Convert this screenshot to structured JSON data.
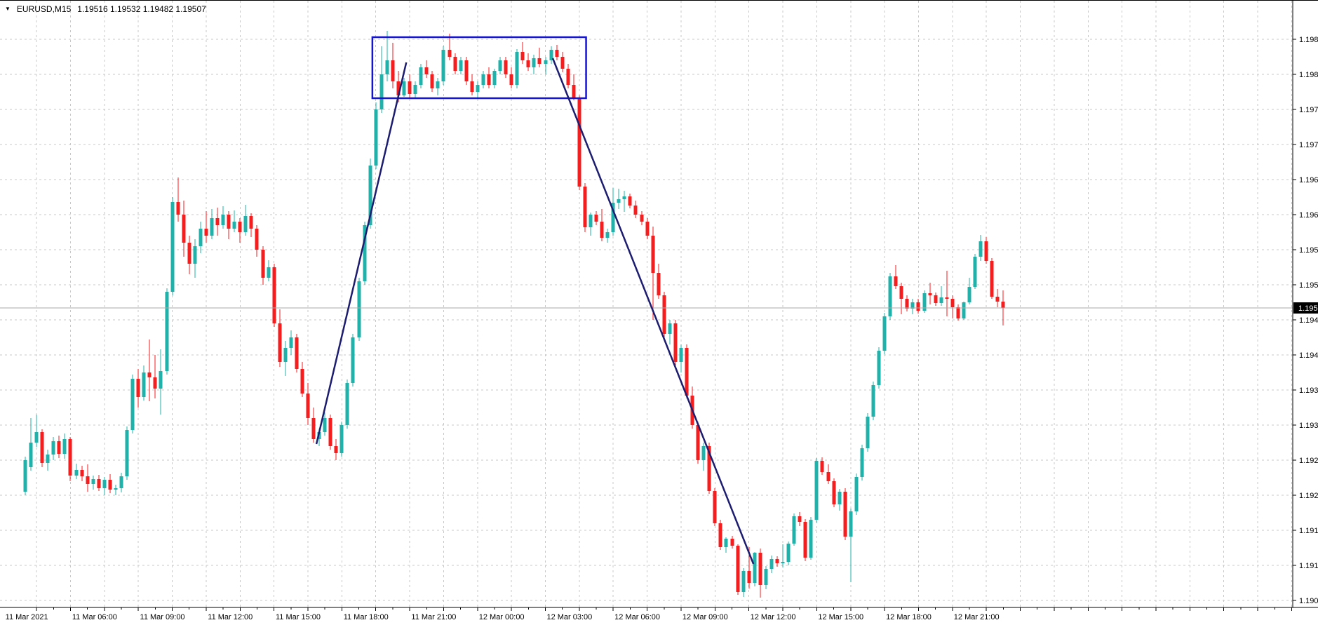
{
  "window": {
    "symbol_label": "EURUSD,M15",
    "ohlc_line": "1.19516 1.19532 1.19482 1.19507"
  },
  "chart_data": {
    "type": "candlestick",
    "title": "EURUSD,M15",
    "symbol": "EURUSD",
    "timeframe": "M15",
    "current_price": "1.19507",
    "colors": {
      "background": "#ffffff",
      "bull": "#20b2aa",
      "bear": "#f51d1d",
      "grid": "#c8c8c8",
      "axis_line": "#000000",
      "price_line": "#aaaaaa",
      "badge_bg": "#000000",
      "badge_text": "#ffffff",
      "rectangle": "#1515cd",
      "trendline": "#1c1c70"
    },
    "y_axis": {
      "max": 1.1989,
      "min": 1.1909,
      "step": 0.0005,
      "labels": [
        "1.19890",
        "1.19840",
        "1.19790",
        "1.19740",
        "1.19690",
        "1.19640",
        "1.19590",
        "1.19540",
        "1.19490",
        "1.19440",
        "1.19390",
        "1.19340",
        "1.19290",
        "1.19240",
        "1.19190",
        "1.19140",
        "1.19090"
      ]
    },
    "x_axis": {
      "labels": [
        {
          "i": 2,
          "t": "11 Mar 2021"
        },
        {
          "i": 14,
          "t": "11 Mar 06:00"
        },
        {
          "i": 26,
          "t": "11 Mar 09:00"
        },
        {
          "i": 38,
          "t": "11 Mar 12:00"
        },
        {
          "i": 50,
          "t": "11 Mar 15:00"
        },
        {
          "i": 62,
          "t": "11 Mar 18:00"
        },
        {
          "i": 74,
          "t": "11 Mar 21:00"
        },
        {
          "i": 86,
          "t": "12 Mar 00:00"
        },
        {
          "i": 98,
          "t": "12 Mar 03:00"
        },
        {
          "i": 110,
          "t": "12 Mar 06:00"
        },
        {
          "i": 122,
          "t": "12 Mar 09:00"
        },
        {
          "i": 134,
          "t": "12 Mar 12:00"
        },
        {
          "i": 146,
          "t": "12 Mar 15:00"
        },
        {
          "i": 158,
          "t": "12 Mar 18:00"
        },
        {
          "i": 170,
          "t": "12 Mar 21:00"
        }
      ]
    },
    "annotations": {
      "rectangle": {
        "i1": 61.4,
        "i2": 99.2,
        "p1": 1.19893,
        "p2": 1.19806
      },
      "trendlines": [
        {
          "i1": 51.5,
          "p1": 1.19313,
          "i2": 67.4,
          "p2": 1.19857
        },
        {
          "i1": 93.3,
          "p1": 1.19863,
          "i2": 128.8,
          "p2": 1.19142
        }
      ]
    },
    "candles": [
      [
        1.19245,
        1.19295,
        1.1924,
        1.1929
      ],
      [
        1.1928,
        1.1935,
        1.19275,
        1.19315
      ],
      [
        1.19315,
        1.19355,
        1.19309,
        1.1933
      ],
      [
        1.1933,
        1.19334,
        1.1928,
        1.19286
      ],
      [
        1.19286,
        1.19305,
        1.19275,
        1.19298
      ],
      [
        1.19298,
        1.19323,
        1.1929,
        1.19317
      ],
      [
        1.19317,
        1.19325,
        1.19293,
        1.19299
      ],
      [
        1.19299,
        1.19328,
        1.19292,
        1.1932
      ],
      [
        1.1932,
        1.19323,
        1.1926,
        1.19268
      ],
      [
        1.19268,
        1.19285,
        1.19263,
        1.19276
      ],
      [
        1.19276,
        1.19282,
        1.1926,
        1.19267
      ],
      [
        1.19267,
        1.19284,
        1.19245,
        1.19256
      ],
      [
        1.19256,
        1.19268,
        1.19248,
        1.19263
      ],
      [
        1.19263,
        1.19269,
        1.19246,
        1.1925
      ],
      [
        1.1925,
        1.19266,
        1.1924,
        1.19262
      ],
      [
        1.19262,
        1.1927,
        1.19243,
        1.19248
      ],
      [
        1.19248,
        1.19255,
        1.1924,
        1.1925
      ],
      [
        1.1925,
        1.19272,
        1.19244,
        1.19267
      ],
      [
        1.19267,
        1.19338,
        1.19262,
        1.19333
      ],
      [
        1.19333,
        1.19412,
        1.19328,
        1.19406
      ],
      [
        1.19406,
        1.1942,
        1.19365,
        1.1938
      ],
      [
        1.1938,
        1.19425,
        1.19375,
        1.19415
      ],
      [
        1.19415,
        1.19462,
        1.19374,
        1.19408
      ],
      [
        1.19408,
        1.1944,
        1.19378,
        1.19392
      ],
      [
        1.19392,
        1.19448,
        1.19355,
        1.19417
      ],
      [
        1.19417,
        1.19535,
        1.19412,
        1.1953
      ],
      [
        1.1953,
        1.19665,
        1.19525,
        1.19658
      ],
      [
        1.19658,
        1.19693,
        1.1963,
        1.1964
      ],
      [
        1.1964,
        1.1966,
        1.1958,
        1.196
      ],
      [
        1.196,
        1.1961,
        1.19555,
        1.1957
      ],
      [
        1.1957,
        1.19605,
        1.1955,
        1.19595
      ],
      [
        1.19595,
        1.1963,
        1.19585,
        1.1962
      ],
      [
        1.1962,
        1.19645,
        1.196,
        1.1961
      ],
      [
        1.1961,
        1.19648,
        1.19605,
        1.19635
      ],
      [
        1.19635,
        1.1965,
        1.1961,
        1.19625
      ],
      [
        1.19625,
        1.19652,
        1.1962,
        1.1964
      ],
      [
        1.1964,
        1.19645,
        1.19605,
        1.1962
      ],
      [
        1.1962,
        1.19646,
        1.19615,
        1.1963
      ],
      [
        1.1963,
        1.19635,
        1.196,
        1.19615
      ],
      [
        1.19615,
        1.19654,
        1.1961,
        1.19638
      ],
      [
        1.19638,
        1.19642,
        1.19608,
        1.1962
      ],
      [
        1.1962,
        1.19625,
        1.1958,
        1.1959
      ],
      [
        1.1959,
        1.19595,
        1.1954,
        1.1955
      ],
      [
        1.1955,
        1.19575,
        1.19545,
        1.19565
      ],
      [
        1.19565,
        1.1957,
        1.1948,
        1.19485
      ],
      [
        1.19485,
        1.19505,
        1.19423,
        1.1943
      ],
      [
        1.1943,
        1.1946,
        1.1941,
        1.1945
      ],
      [
        1.1945,
        1.19475,
        1.1944,
        1.19465
      ],
      [
        1.19465,
        1.1947,
        1.19415,
        1.1942
      ],
      [
        1.1942,
        1.1943,
        1.1938,
        1.19385
      ],
      [
        1.19385,
        1.194,
        1.1934,
        1.1935
      ],
      [
        1.1935,
        1.19365,
        1.19315,
        1.1932
      ],
      [
        1.1932,
        1.19335,
        1.1931,
        1.1933
      ],
      [
        1.1933,
        1.19358,
        1.19325,
        1.1935
      ],
      [
        1.1935,
        1.19355,
        1.19305,
        1.1931
      ],
      [
        1.1931,
        1.1932,
        1.1929,
        1.193
      ],
      [
        1.193,
        1.19345,
        1.19295,
        1.1934
      ],
      [
        1.1934,
        1.19405,
        1.19335,
        1.194
      ],
      [
        1.194,
        1.1947,
        1.19395,
        1.19465
      ],
      [
        1.19465,
        1.1955,
        1.1946,
        1.19545
      ],
      [
        1.19545,
        1.1963,
        1.1954,
        1.19625
      ],
      [
        1.19625,
        1.1972,
        1.1962,
        1.1971
      ],
      [
        1.1971,
        1.198,
        1.19705,
        1.1979
      ],
      [
        1.1979,
        1.1988,
        1.19785,
        1.1984
      ],
      [
        1.1984,
        1.19902,
        1.1983,
        1.1986
      ],
      [
        1.1986,
        1.19885,
        1.1982,
        1.1983
      ],
      [
        1.1983,
        1.19845,
        1.198,
        1.1981
      ],
      [
        1.1981,
        1.19835,
        1.19808,
        1.1983
      ],
      [
        1.1983,
        1.1984,
        1.19807,
        1.19812
      ],
      [
        1.19812,
        1.1983,
        1.19806,
        1.19825
      ],
      [
        1.19825,
        1.19855,
        1.1982,
        1.1985
      ],
      [
        1.1985,
        1.1986,
        1.19835,
        1.1984
      ],
      [
        1.1984,
        1.19845,
        1.19815,
        1.1982
      ],
      [
        1.1982,
        1.19835,
        1.1981,
        1.1983
      ],
      [
        1.1983,
        1.1988,
        1.19825,
        1.19875
      ],
      [
        1.19875,
        1.19898,
        1.1986,
        1.19865
      ],
      [
        1.19865,
        1.1987,
        1.1984,
        1.19845
      ],
      [
        1.19845,
        1.19865,
        1.1984,
        1.1986
      ],
      [
        1.1986,
        1.19865,
        1.19825,
        1.1983
      ],
      [
        1.1983,
        1.1984,
        1.1981,
        1.19815
      ],
      [
        1.19815,
        1.1983,
        1.19807,
        1.19825
      ],
      [
        1.19825,
        1.19845,
        1.1982,
        1.1984
      ],
      [
        1.1984,
        1.1985,
        1.1982,
        1.19825
      ],
      [
        1.19825,
        1.19848,
        1.1982,
        1.19845
      ],
      [
        1.19845,
        1.19865,
        1.1984,
        1.1986
      ],
      [
        1.1986,
        1.19865,
        1.19835,
        1.1984
      ],
      [
        1.1984,
        1.1985,
        1.1982,
        1.19825
      ],
      [
        1.19825,
        1.19876,
        1.1982,
        1.19872
      ],
      [
        1.19872,
        1.19886,
        1.19855,
        1.1986
      ],
      [
        1.1986,
        1.1987,
        1.19845,
        1.1985
      ],
      [
        1.1985,
        1.19868,
        1.1984,
        1.19863
      ],
      [
        1.19863,
        1.19878,
        1.1985,
        1.19855
      ],
      [
        1.19855,
        1.19865,
        1.1984,
        1.1986
      ],
      [
        1.1986,
        1.1988,
        1.19855,
        1.19875
      ],
      [
        1.19875,
        1.19882,
        1.1986,
        1.19865
      ],
      [
        1.19865,
        1.19872,
        1.19843,
        1.19848
      ],
      [
        1.19848,
        1.19855,
        1.1982,
        1.19825
      ],
      [
        1.19825,
        1.1984,
        1.19803,
        1.19807
      ],
      [
        1.19807,
        1.1981,
        1.19675,
        1.1968
      ],
      [
        1.1968,
        1.19685,
        1.19615,
        1.19622
      ],
      [
        1.19622,
        1.19643,
        1.1961,
        1.1964
      ],
      [
        1.1964,
        1.19645,
        1.19625,
        1.1963
      ],
      [
        1.1963,
        1.19648,
        1.19602,
        1.19607
      ],
      [
        1.19607,
        1.1962,
        1.196,
        1.19615
      ],
      [
        1.19615,
        1.19678,
        1.1961,
        1.19657
      ],
      [
        1.19657,
        1.19677,
        1.19648,
        1.19662
      ],
      [
        1.19662,
        1.19674,
        1.19644,
        1.19666
      ],
      [
        1.19666,
        1.1967,
        1.19649,
        1.19653
      ],
      [
        1.19653,
        1.1966,
        1.19635,
        1.1964
      ],
      [
        1.1964,
        1.19645,
        1.19625,
        1.1963
      ],
      [
        1.1963,
        1.19635,
        1.19605,
        1.1961
      ],
      [
        1.1961,
        1.19623,
        1.1949,
        1.19557
      ],
      [
        1.19557,
        1.1957,
        1.1952,
        1.19525
      ],
      [
        1.19525,
        1.1953,
        1.19465,
        1.1947
      ],
      [
        1.1947,
        1.1949,
        1.19455,
        1.19485
      ],
      [
        1.19485,
        1.1949,
        1.19425,
        1.1943
      ],
      [
        1.1943,
        1.19455,
        1.19415,
        1.1945
      ],
      [
        1.1945,
        1.19455,
        1.19378,
        1.19382
      ],
      [
        1.19382,
        1.19395,
        1.19335,
        1.1934
      ],
      [
        1.1934,
        1.19345,
        1.19285,
        1.1929
      ],
      [
        1.1929,
        1.19315,
        1.19275,
        1.1931
      ],
      [
        1.1931,
        1.19315,
        1.19242,
        1.19246
      ],
      [
        1.19246,
        1.1925,
        1.19196,
        1.192
      ],
      [
        1.192,
        1.19205,
        1.19162,
        1.19166
      ],
      [
        1.19166,
        1.1918,
        1.19158,
        1.19178
      ],
      [
        1.19178,
        1.19182,
        1.19164,
        1.19168
      ],
      [
        1.19168,
        1.1917,
        1.19098,
        1.19102
      ],
      [
        1.19102,
        1.19136,
        1.19095,
        1.19132
      ],
      [
        1.19132,
        1.19166,
        1.19107,
        1.19115
      ],
      [
        1.19115,
        1.19159,
        1.1911,
        1.19158
      ],
      [
        1.19158,
        1.19164,
        1.19094,
        1.19112
      ],
      [
        1.19112,
        1.19139,
        1.19106,
        1.19135
      ],
      [
        1.19135,
        1.19154,
        1.19129,
        1.19149
      ],
      [
        1.19149,
        1.19153,
        1.19138,
        1.19143
      ],
      [
        1.19143,
        1.1917,
        1.19137,
        1.19145
      ],
      [
        1.19145,
        1.19174,
        1.1914,
        1.19171
      ],
      [
        1.19171,
        1.19214,
        1.19168,
        1.1921
      ],
      [
        1.1921,
        1.19216,
        1.19196,
        1.19202
      ],
      [
        1.19202,
        1.19206,
        1.19146,
        1.19151
      ],
      [
        1.19151,
        1.19209,
        1.19148,
        1.19205
      ],
      [
        1.19205,
        1.19293,
        1.19201,
        1.19289
      ],
      [
        1.19289,
        1.19294,
        1.19269,
        1.19273
      ],
      [
        1.19273,
        1.19284,
        1.19256,
        1.1926
      ],
      [
        1.1926,
        1.19264,
        1.19223,
        1.19227
      ],
      [
        1.19227,
        1.19249,
        1.19218,
        1.19245
      ],
      [
        1.19245,
        1.1925,
        1.19176,
        1.19181
      ],
      [
        1.19181,
        1.19221,
        1.19116,
        1.19217
      ],
      [
        1.19217,
        1.19271,
        1.19212,
        1.19266
      ],
      [
        1.19266,
        1.19312,
        1.19261,
        1.19307
      ],
      [
        1.19307,
        1.19357,
        1.19302,
        1.19352
      ],
      [
        1.19352,
        1.19402,
        1.19347,
        1.19397
      ],
      [
        1.19397,
        1.19451,
        1.19392,
        1.19446
      ],
      [
        1.19446,
        1.195,
        1.19441,
        1.19495
      ],
      [
        1.19495,
        1.19557,
        1.1949,
        1.19552
      ],
      [
        1.19552,
        1.19568,
        1.19534,
        1.19538
      ],
      [
        1.19538,
        1.19543,
        1.19498,
        1.1952
      ],
      [
        1.1952,
        1.19525,
        1.19502,
        1.19506
      ],
      [
        1.19506,
        1.1952,
        1.19498,
        1.19515
      ],
      [
        1.19515,
        1.1952,
        1.19499,
        1.19503
      ],
      [
        1.19503,
        1.19532,
        1.195,
        1.19528
      ],
      [
        1.19528,
        1.19543,
        1.19512,
        1.19525
      ],
      [
        1.19525,
        1.19529,
        1.1951,
        1.19514
      ],
      [
        1.19514,
        1.19538,
        1.1951,
        1.19522
      ],
      [
        1.19522,
        1.1956,
        1.19495,
        1.1952
      ],
      [
        1.1952,
        1.19525,
        1.19492,
        1.19508
      ],
      [
        1.19508,
        1.19512,
        1.19489,
        1.19492
      ],
      [
        1.19492,
        1.19516,
        1.1949,
        1.19515
      ],
      [
        1.19515,
        1.1955,
        1.19512,
        1.19537
      ],
      [
        1.19537,
        1.19584,
        1.19534,
        1.1958
      ],
      [
        1.1958,
        1.19611,
        1.19574,
        1.19602
      ],
      [
        1.19602,
        1.19608,
        1.1957,
        1.19574
      ],
      [
        1.19574,
        1.19578,
        1.1952,
        1.19523
      ],
      [
        1.19523,
        1.19534,
        1.19508,
        1.19516
      ],
      [
        1.19516,
        1.19532,
        1.19482,
        1.19507
      ]
    ],
    "layout_hints": {
      "grid": "dashed",
      "legend": "none",
      "price_axis_side": "right"
    }
  }
}
